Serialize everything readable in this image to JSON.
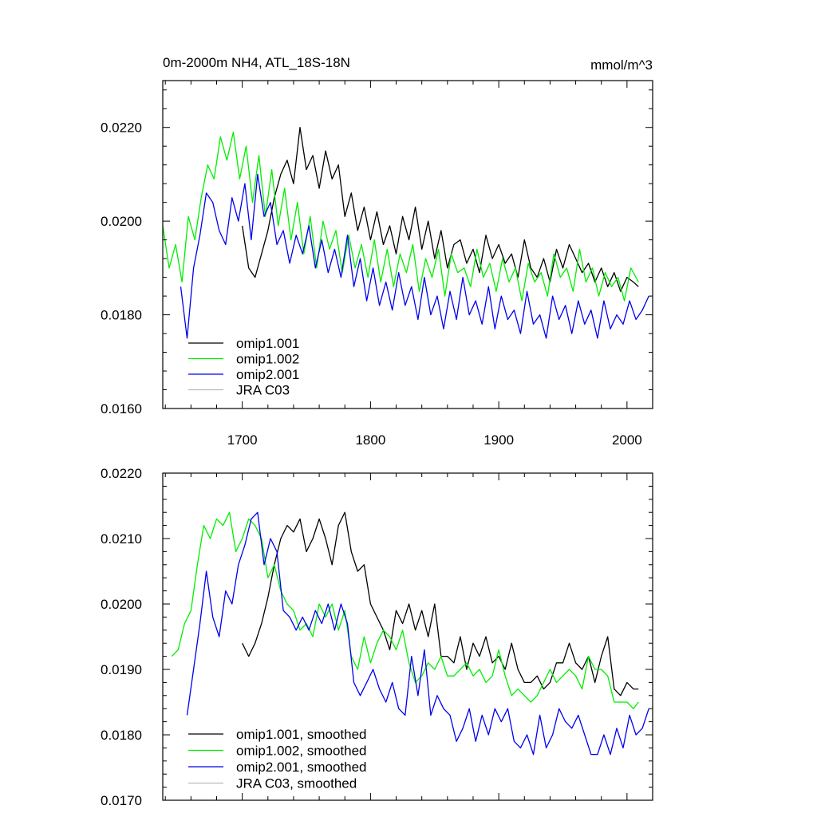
{
  "colors": {
    "omip1_001": "#000000",
    "omip1_002": "#00ee00",
    "omip2_001": "#0000ee",
    "jra_c03": "#bbbbbb"
  },
  "chart_data": [
    {
      "type": "line",
      "title": "0m-2000m NH4, ATL_18S-18N",
      "units": "mmol/m^3",
      "xlim": [
        1638,
        2020
      ],
      "ylim": [
        0.016,
        0.023
      ],
      "yticks": [
        "0.0160",
        "0.0180",
        "0.0200",
        "0.0220"
      ],
      "ytick_values": [
        0.016,
        0.018,
        0.02,
        0.022
      ],
      "xticks": [
        "1700",
        "1800",
        "1900",
        "2000"
      ],
      "xtick_values": [
        1700,
        1800,
        1900,
        2000
      ],
      "legend": [
        "omip1.001",
        "omip1.002",
        "omip2.001",
        "JRA C03"
      ],
      "series": [
        {
          "name": "omip1.001",
          "color_key": "omip1_001",
          "x": [
            1700,
            1705,
            1710,
            1715,
            1720,
            1725,
            1730,
            1735,
            1740,
            1745,
            1750,
            1755,
            1760,
            1765,
            1770,
            1775,
            1780,
            1785,
            1790,
            1795,
            1800,
            1805,
            1810,
            1815,
            1820,
            1825,
            1830,
            1835,
            1840,
            1845,
            1850,
            1855,
            1860,
            1865,
            1870,
            1875,
            1880,
            1885,
            1890,
            1895,
            1900,
            1905,
            1910,
            1915,
            1920,
            1925,
            1930,
            1935,
            1940,
            1945,
            1950,
            1955,
            1960,
            1965,
            1970,
            1975,
            1980,
            1985,
            1990,
            1995,
            2000,
            2005,
            2009
          ],
          "y": [
            0.0199,
            0.019,
            0.0188,
            0.0193,
            0.0198,
            0.0205,
            0.021,
            0.0213,
            0.0208,
            0.022,
            0.0211,
            0.0214,
            0.0207,
            0.0215,
            0.0209,
            0.0212,
            0.0201,
            0.0206,
            0.0198,
            0.0203,
            0.0196,
            0.0202,
            0.0195,
            0.0199,
            0.0193,
            0.0201,
            0.0196,
            0.0203,
            0.0194,
            0.02,
            0.0192,
            0.0198,
            0.019,
            0.0195,
            0.0196,
            0.0191,
            0.0194,
            0.0189,
            0.0197,
            0.0192,
            0.0195,
            0.0191,
            0.0193,
            0.0188,
            0.0196,
            0.019,
            0.0188,
            0.0192,
            0.0187,
            0.0194,
            0.019,
            0.0195,
            0.0192,
            0.0189,
            0.0191,
            0.0187,
            0.019,
            0.0186,
            0.0189,
            0.0185,
            0.0188,
            0.0187,
            0.0186
          ]
        },
        {
          "name": "omip1.002",
          "color_key": "omip1_002",
          "x": [
            1638,
            1643,
            1648,
            1653,
            1658,
            1663,
            1668,
            1673,
            1678,
            1683,
            1688,
            1693,
            1698,
            1703,
            1708,
            1713,
            1718,
            1723,
            1728,
            1733,
            1738,
            1743,
            1748,
            1753,
            1758,
            1763,
            1768,
            1773,
            1778,
            1783,
            1788,
            1793,
            1798,
            1803,
            1808,
            1813,
            1818,
            1823,
            1828,
            1833,
            1838,
            1843,
            1848,
            1853,
            1858,
            1863,
            1868,
            1873,
            1878,
            1883,
            1888,
            1893,
            1898,
            1903,
            1908,
            1913,
            1918,
            1923,
            1928,
            1933,
            1938,
            1943,
            1948,
            1953,
            1958,
            1963,
            1968,
            1973,
            1978,
            1983,
            1988,
            1993,
            1998,
            2003,
            2009
          ],
          "y": [
            0.0199,
            0.019,
            0.0195,
            0.0187,
            0.0201,
            0.0196,
            0.0205,
            0.0212,
            0.0209,
            0.0218,
            0.0213,
            0.0219,
            0.0209,
            0.0216,
            0.0204,
            0.0214,
            0.0201,
            0.0211,
            0.0199,
            0.0207,
            0.0196,
            0.0204,
            0.0193,
            0.0201,
            0.019,
            0.02,
            0.0194,
            0.0198,
            0.0189,
            0.0197,
            0.019,
            0.0195,
            0.0188,
            0.0196,
            0.0187,
            0.0194,
            0.0186,
            0.0193,
            0.0189,
            0.0195,
            0.0185,
            0.0192,
            0.0188,
            0.0194,
            0.0184,
            0.0193,
            0.0189,
            0.019,
            0.0186,
            0.0194,
            0.0188,
            0.0191,
            0.0185,
            0.0192,
            0.0187,
            0.019,
            0.0183,
            0.0191,
            0.0187,
            0.0189,
            0.0184,
            0.0193,
            0.0188,
            0.019,
            0.0185,
            0.0194,
            0.0187,
            0.019,
            0.0184,
            0.0189,
            0.0186,
            0.0188,
            0.0183,
            0.019,
            0.0187
          ]
        },
        {
          "name": "omip2.001",
          "color_key": "omip2_001",
          "x": [
            1652,
            1657,
            1662,
            1667,
            1672,
            1677,
            1682,
            1687,
            1692,
            1697,
            1702,
            1707,
            1712,
            1717,
            1722,
            1727,
            1732,
            1737,
            1742,
            1747,
            1752,
            1757,
            1762,
            1767,
            1772,
            1777,
            1782,
            1787,
            1792,
            1797,
            1802,
            1807,
            1812,
            1817,
            1822,
            1827,
            1832,
            1837,
            1842,
            1847,
            1852,
            1857,
            1862,
            1867,
            1872,
            1877,
            1882,
            1887,
            1892,
            1897,
            1902,
            1907,
            1912,
            1917,
            1922,
            1927,
            1932,
            1937,
            1942,
            1947,
            1952,
            1957,
            1962,
            1967,
            1972,
            1977,
            1982,
            1987,
            1992,
            1997,
            2002,
            2007,
            2012,
            2017
          ],
          "y": [
            0.0186,
            0.0175,
            0.019,
            0.0197,
            0.0206,
            0.0204,
            0.0198,
            0.0195,
            0.0205,
            0.02,
            0.0208,
            0.0196,
            0.021,
            0.0201,
            0.0204,
            0.0195,
            0.0198,
            0.0191,
            0.0197,
            0.0193,
            0.0199,
            0.019,
            0.0196,
            0.0189,
            0.0194,
            0.0188,
            0.0197,
            0.0186,
            0.0192,
            0.0183,
            0.019,
            0.0182,
            0.0187,
            0.0181,
            0.0189,
            0.0182,
            0.0186,
            0.0179,
            0.0188,
            0.018,
            0.0184,
            0.0177,
            0.0185,
            0.0179,
            0.0188,
            0.018,
            0.0183,
            0.0178,
            0.0186,
            0.0177,
            0.0184,
            0.0179,
            0.0181,
            0.0176,
            0.0185,
            0.0178,
            0.018,
            0.0175,
            0.0184,
            0.0179,
            0.0182,
            0.0176,
            0.0183,
            0.0178,
            0.0181,
            0.0175,
            0.0183,
            0.0177,
            0.018,
            0.0178,
            0.0183,
            0.0179,
            0.0181,
            0.0184
          ]
        }
      ]
    },
    {
      "type": "line",
      "title": "",
      "xlim": [
        1638,
        2020
      ],
      "ylim": [
        0.017,
        0.022
      ],
      "yticks": [
        "0.0170",
        "0.0180",
        "0.0190",
        "0.0200",
        "0.0210",
        "0.0220"
      ],
      "ytick_values": [
        0.017,
        0.018,
        0.019,
        0.02,
        0.021,
        0.022
      ],
      "xtick_values": [
        1700,
        1800,
        1900,
        2000
      ],
      "legend": [
        "omip1.001, smoothed",
        "omip1.002, smoothed",
        "omip2.001, smoothed",
        "JRA C03, smoothed"
      ],
      "series": [
        {
          "name": "omip1.001, smoothed",
          "color_key": "omip1_001",
          "x": [
            1700,
            1705,
            1710,
            1715,
            1720,
            1725,
            1730,
            1735,
            1740,
            1745,
            1750,
            1755,
            1760,
            1765,
            1770,
            1775,
            1780,
            1785,
            1790,
            1795,
            1800,
            1805,
            1810,
            1815,
            1820,
            1825,
            1830,
            1835,
            1840,
            1845,
            1850,
            1855,
            1860,
            1865,
            1870,
            1875,
            1880,
            1885,
            1890,
            1895,
            1900,
            1905,
            1910,
            1915,
            1920,
            1925,
            1930,
            1935,
            1940,
            1945,
            1950,
            1955,
            1960,
            1965,
            1970,
            1975,
            1980,
            1985,
            1990,
            1995,
            2000,
            2005,
            2009
          ],
          "y": [
            0.0194,
            0.0192,
            0.0194,
            0.0197,
            0.0201,
            0.0206,
            0.021,
            0.0212,
            0.0211,
            0.0213,
            0.0208,
            0.021,
            0.0213,
            0.021,
            0.0206,
            0.0212,
            0.0214,
            0.0208,
            0.0205,
            0.0206,
            0.02,
            0.0198,
            0.0196,
            0.0193,
            0.0199,
            0.0197,
            0.02,
            0.0196,
            0.0199,
            0.0195,
            0.02,
            0.0192,
            0.0192,
            0.0191,
            0.0195,
            0.019,
            0.0194,
            0.0192,
            0.0195,
            0.0191,
            0.0192,
            0.019,
            0.0194,
            0.019,
            0.0188,
            0.0188,
            0.0189,
            0.0187,
            0.0188,
            0.0191,
            0.0191,
            0.0194,
            0.0191,
            0.019,
            0.0192,
            0.0188,
            0.0192,
            0.0195,
            0.0187,
            0.0186,
            0.0188,
            0.0187,
            0.0187
          ]
        },
        {
          "name": "omip1.002, smoothed",
          "color_key": "omip1_002",
          "x": [
            1645,
            1650,
            1655,
            1660,
            1665,
            1670,
            1675,
            1680,
            1685,
            1690,
            1695,
            1700,
            1705,
            1710,
            1715,
            1720,
            1725,
            1730,
            1735,
            1740,
            1745,
            1750,
            1755,
            1760,
            1765,
            1770,
            1775,
            1780,
            1785,
            1790,
            1795,
            1800,
            1805,
            1810,
            1815,
            1820,
            1825,
            1830,
            1835,
            1840,
            1845,
            1850,
            1855,
            1860,
            1865,
            1870,
            1875,
            1880,
            1885,
            1890,
            1895,
            1900,
            1905,
            1910,
            1915,
            1920,
            1925,
            1930,
            1935,
            1940,
            1945,
            1950,
            1955,
            1960,
            1965,
            1970,
            1975,
            1980,
            1985,
            1990,
            1995,
            2000,
            2005,
            2009
          ],
          "y": [
            0.0192,
            0.0193,
            0.0197,
            0.0199,
            0.0206,
            0.0212,
            0.021,
            0.0213,
            0.0212,
            0.0214,
            0.0208,
            0.021,
            0.0213,
            0.0212,
            0.021,
            0.0204,
            0.0206,
            0.0202,
            0.02,
            0.0199,
            0.0196,
            0.0197,
            0.0195,
            0.02,
            0.0198,
            0.02,
            0.0196,
            0.0199,
            0.0192,
            0.019,
            0.0195,
            0.0191,
            0.0194,
            0.0196,
            0.0195,
            0.0193,
            0.0196,
            0.0191,
            0.0188,
            0.0189,
            0.0191,
            0.019,
            0.0192,
            0.0189,
            0.0189,
            0.019,
            0.0191,
            0.0189,
            0.019,
            0.0188,
            0.0189,
            0.0193,
            0.0189,
            0.0186,
            0.0187,
            0.0186,
            0.0185,
            0.0186,
            0.0188,
            0.019,
            0.0188,
            0.0189,
            0.019,
            0.0189,
            0.0187,
            0.0192,
            0.019,
            0.019,
            0.0189,
            0.0185,
            0.0185,
            0.0185,
            0.0184,
            0.0185
          ]
        },
        {
          "name": "omip2.001, smoothed",
          "color_key": "omip2_001",
          "x": [
            1657,
            1662,
            1667,
            1672,
            1677,
            1682,
            1687,
            1692,
            1697,
            1702,
            1707,
            1712,
            1717,
            1722,
            1727,
            1732,
            1737,
            1742,
            1747,
            1752,
            1757,
            1762,
            1767,
            1772,
            1777,
            1782,
            1787,
            1792,
            1797,
            1802,
            1807,
            1812,
            1817,
            1822,
            1827,
            1832,
            1837,
            1842,
            1847,
            1852,
            1857,
            1862,
            1867,
            1872,
            1877,
            1882,
            1887,
            1892,
            1897,
            1902,
            1907,
            1912,
            1917,
            1922,
            1927,
            1932,
            1937,
            1942,
            1947,
            1952,
            1957,
            1962,
            1967,
            1972,
            1977,
            1982,
            1987,
            1992,
            1997,
            2002,
            2007,
            2012,
            2017
          ],
          "y": [
            0.0183,
            0.019,
            0.0197,
            0.0205,
            0.0198,
            0.0195,
            0.0202,
            0.02,
            0.0206,
            0.0209,
            0.0213,
            0.0214,
            0.0206,
            0.021,
            0.0208,
            0.0199,
            0.0198,
            0.0196,
            0.0198,
            0.0196,
            0.0199,
            0.0197,
            0.02,
            0.0196,
            0.02,
            0.0197,
            0.0188,
            0.0186,
            0.0188,
            0.019,
            0.0187,
            0.0185,
            0.0188,
            0.0184,
            0.0183,
            0.0192,
            0.0186,
            0.0193,
            0.0183,
            0.0186,
            0.0184,
            0.0183,
            0.0179,
            0.0181,
            0.0184,
            0.0179,
            0.0183,
            0.018,
            0.0184,
            0.0182,
            0.0184,
            0.0179,
            0.0178,
            0.018,
            0.0177,
            0.0183,
            0.0178,
            0.018,
            0.0184,
            0.0182,
            0.0181,
            0.0183,
            0.018,
            0.0177,
            0.0177,
            0.018,
            0.0177,
            0.0181,
            0.0178,
            0.0183,
            0.018,
            0.0181,
            0.0184
          ]
        }
      ]
    }
  ]
}
